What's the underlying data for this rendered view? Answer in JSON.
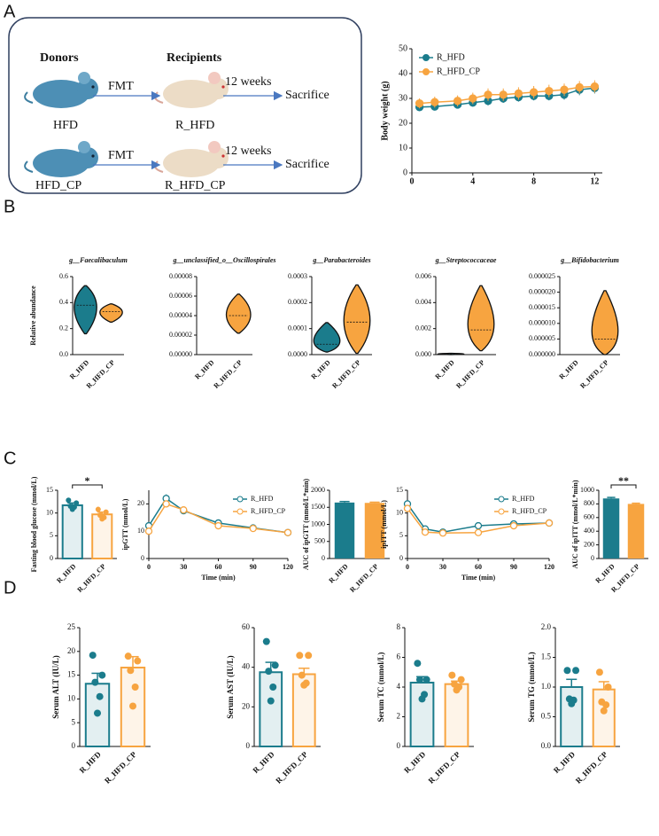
{
  "panels": [
    "A",
    "B",
    "C",
    "D"
  ],
  "diagram": {
    "donors_label": "Donors",
    "recipients_label": "Recipients",
    "rows": [
      {
        "donor": "HFD",
        "transfer": "FMT",
        "recipient": "R_HFD",
        "duration": "12 weeks",
        "outcome": "Sacrifice"
      },
      {
        "donor": "HFD_CP",
        "transfer": "FMT",
        "recipient": "R_HFD_CP",
        "duration": "12 weeks",
        "outcome": "Sacrifice"
      }
    ]
  },
  "chart_data": [
    {
      "type": "line",
      "ylabel": "Body weight (g)",
      "legend": "upper left",
      "x": [
        0.5,
        1.5,
        3,
        4,
        5,
        6,
        7,
        8,
        9,
        10,
        11,
        12
      ],
      "series": [
        {
          "name": "R_HFD",
          "color": "#1b7c8c",
          "values": [
            26.5,
            26.7,
            27.5,
            28.3,
            29,
            30,
            30.5,
            31,
            31,
            31.5,
            33.5,
            34.2
          ],
          "errors": [
            1.5,
            1.5,
            1.6,
            1.6,
            1.8,
            1.8,
            1.8,
            1.8,
            1.8,
            2,
            2.2,
            2.2
          ]
        },
        {
          "name": "R_HFD_CP",
          "color": "#f7a440",
          "values": [
            28,
            28.5,
            29,
            30,
            31.5,
            31.5,
            32,
            32.5,
            33,
            33.5,
            34.5,
            34.8
          ],
          "errors": [
            2,
            2.2,
            2.2,
            2.3,
            2.5,
            2.5,
            2.5,
            2.5,
            2.5,
            2.5,
            2.5,
            2.5
          ]
        }
      ],
      "xlim": [
        0,
        12.5
      ],
      "xticks": [
        0,
        4,
        8,
        12
      ],
      "ylim": [
        0,
        50
      ],
      "yticks": [
        0,
        10,
        20,
        30,
        40,
        50
      ]
    },
    {
      "type": "violin",
      "title": "g__Faecalibaculum",
      "ylabel": "Relative abundance",
      "categories": [
        "R_HFD",
        "R_HFD_CP"
      ],
      "colors": [
        "#1b7c8c",
        "#f7a440"
      ],
      "min": [
        0.16,
        0.25
      ],
      "median": [
        0.38,
        0.33
      ],
      "max": [
        0.53,
        0.39
      ],
      "ylim": [
        0,
        0.6
      ],
      "yticks": [
        {
          "value": 0,
          "label": "0.0"
        },
        0.2,
        0.4,
        0.6
      ]
    },
    {
      "type": "violin",
      "title": "g__unclassified_o__Oscillospirales",
      "categories": [
        "R_HFD",
        "R_HFD_CP"
      ],
      "colors": [
        "#1b7c8c",
        "#f7a440"
      ],
      "min": [
        null,
        2.2e-05
      ],
      "median": [
        null,
        4e-05
      ],
      "max": [
        null,
        6.2e-05
      ],
      "ylim": [
        0,
        8e-05
      ],
      "yticks": [
        {
          "value": 0,
          "label": "0.00000"
        },
        2e-05,
        4e-05,
        6e-05,
        8e-05
      ]
    },
    {
      "type": "violin",
      "title": "g__Parabacteroides",
      "categories": [
        "R_HFD",
        "R_HFD_CP"
      ],
      "colors": [
        "#1b7c8c",
        "#f7a440"
      ],
      "min": [
        1e-05,
        5e-06
      ],
      "median": [
        4e-05,
        0.000125
      ],
      "max": [
        0.000123,
        0.000268
      ],
      "ylim": [
        0,
        0.0003
      ],
      "yticks": [
        {
          "value": 0,
          "label": "0.0000"
        },
        0.0001,
        0.0002,
        0.0003
      ]
    },
    {
      "type": "violin",
      "title": "g__Streptococcaceae",
      "categories": [
        "R_HFD",
        "R_HFD_CP"
      ],
      "colors": [
        "#1b7c8c",
        "#f7a440"
      ],
      "min": [
        0,
        0.0003
      ],
      "median": [
        5e-05,
        0.0019
      ],
      "max": [
        0.0001,
        0.0053
      ],
      "ylim": [
        0,
        0.006
      ],
      "yticks": [
        {
          "value": 0,
          "label": "0.000"
        },
        0.002,
        0.004,
        0.006
      ]
    },
    {
      "type": "violin",
      "title": "g__Bifidobacterium",
      "categories": [
        "R_HFD",
        "R_HFD_CP"
      ],
      "colors": [
        "#1b7c8c",
        "#f7a440"
      ],
      "min": [
        null,
        0
      ],
      "median": [
        null,
        5e-06
      ],
      "max": [
        null,
        2.05e-05
      ],
      "ylim": [
        0,
        2.5e-05
      ],
      "yticks": [
        {
          "value": 0,
          "label": "0.000000"
        },
        5e-06,
        {
          "value": 1e-05,
          "label": "0.000010"
        },
        1.5e-05,
        {
          "value": 2e-05,
          "label": "0.000020"
        },
        2.5e-05
      ]
    },
    {
      "type": "bar",
      "ylabel": "Fasting blood glucose (mmol/L)",
      "categories": [
        "R_HFD",
        "R_HFD_CP"
      ],
      "colors": [
        "#1b7c8c",
        "#f7a440"
      ],
      "filled": false,
      "values": [
        11.7,
        9.7
      ],
      "errors": [
        0.5,
        0.5
      ],
      "points": [
        [
          12.8,
          12.2,
          11.5,
          11.3,
          10.8
        ],
        [
          10.8,
          10.2,
          9.5,
          9.0,
          8.7
        ]
      ],
      "annotation": "*",
      "ylim": [
        0,
        15
      ],
      "yticks": [
        0,
        5,
        10,
        15
      ]
    },
    {
      "type": "line",
      "ylabel": "ipGTT (mmol/L)",
      "xlabel": "Time (min)",
      "legend": "upper right",
      "x": [
        0,
        15,
        30,
        60,
        90,
        120
      ],
      "series": [
        {
          "name": "R_HFD",
          "color": "#1b7c8c",
          "values": [
            12,
            22,
            17.5,
            13,
            11.2,
            9.5
          ],
          "errors": [
            0.5,
            1.5,
            0.8,
            0.8,
            0.5,
            0.4
          ]
        },
        {
          "name": "R_HFD_CP",
          "color": "#f7a440",
          "values": [
            10,
            20,
            17.8,
            12,
            11,
            9.5
          ],
          "errors": [
            0.5,
            1.2,
            0.8,
            0.6,
            0.5,
            0.4
          ]
        }
      ],
      "xlim": [
        0,
        120
      ],
      "xticks": [
        0,
        30,
        60,
        90,
        120
      ],
      "ylim": [
        0,
        25
      ],
      "yticks": [
        0,
        10,
        20
      ]
    },
    {
      "type": "bar",
      "ylabel": "AUC of ipGTT (mmol/L*min)",
      "categories": [
        "R_HFD",
        "R_HFD_CP"
      ],
      "colors": [
        "#1b7c8c",
        "#f7a440"
      ],
      "filled": true,
      "values": [
        1640,
        1630
      ],
      "errors": [
        30,
        20
      ],
      "ylim": [
        0,
        2000
      ],
      "yticks": [
        0,
        500,
        1000,
        1500,
        2000
      ]
    },
    {
      "type": "line",
      "ylabel": "ipITT (mmol/L)",
      "xlabel": "Time (min)",
      "legend": "upper right",
      "x": [
        0,
        15,
        30,
        60,
        90,
        120
      ],
      "series": [
        {
          "name": "R_HFD",
          "color": "#1b7c8c",
          "values": [
            12,
            6.5,
            5.8,
            7.2,
            7.6,
            7.8
          ],
          "errors": [
            0.5,
            0.4,
            0.3,
            0.4,
            0.4,
            0.4
          ]
        },
        {
          "name": "R_HFD_CP",
          "color": "#f7a440",
          "values": [
            11,
            5.8,
            5.6,
            5.7,
            7.2,
            7.8
          ],
          "errors": [
            0.5,
            0.3,
            0.3,
            0.3,
            0.4,
            0.4
          ]
        }
      ],
      "xlim": [
        0,
        120
      ],
      "xticks": [
        0,
        30,
        60,
        90,
        120
      ],
      "ylim": [
        0,
        15
      ],
      "yticks": [
        0,
        5,
        10,
        15
      ]
    },
    {
      "type": "bar",
      "ylabel": "AUC of ipITT (mmol/L*min)",
      "categories": [
        "R_HFD",
        "R_HFD_CP"
      ],
      "colors": [
        "#1b7c8c",
        "#f7a440"
      ],
      "filled": true,
      "values": [
        880,
        800
      ],
      "errors": [
        15,
        10
      ],
      "annotation": "**",
      "ylim": [
        0,
        1000
      ],
      "yticks": [
        0,
        200,
        400,
        600,
        800,
        1000
      ]
    },
    {
      "type": "bar",
      "ylabel": "Serum ALT (IU/L)",
      "categories": [
        "R_HFD",
        "R_HFD_CP"
      ],
      "colors": [
        "#1b7c8c",
        "#f7a440"
      ],
      "filled": false,
      "values": [
        13.2,
        16.6
      ],
      "errors": [
        2.2,
        2.3
      ],
      "points": [
        [
          19.2,
          15,
          13.5,
          10.5,
          7
        ],
        [
          19,
          18,
          16,
          12.5,
          8.5
        ]
      ],
      "ylim": [
        0,
        25
      ],
      "yticks": [
        0,
        5,
        10,
        15,
        20,
        25
      ]
    },
    {
      "type": "bar",
      "ylabel": "Serum AST (IU/L)",
      "categories": [
        "R_HFD",
        "R_HFD_CP"
      ],
      "colors": [
        "#1b7c8c",
        "#f7a440"
      ],
      "filled": false,
      "values": [
        37.5,
        36.5
      ],
      "errors": [
        5,
        3
      ],
      "points": [
        [
          53,
          41,
          38,
          30,
          23
        ],
        [
          46,
          46,
          36,
          32,
          31
        ]
      ],
      "ylim": [
        0,
        60
      ],
      "yticks": [
        0,
        20,
        40,
        60
      ]
    },
    {
      "type": "bar",
      "ylabel": "Serum TC (mmol/L)",
      "categories": [
        "R_HFD",
        "R_HFD_CP"
      ],
      "colors": [
        "#1b7c8c",
        "#f7a440"
      ],
      "filled": false,
      "values": [
        4.3,
        4.2
      ],
      "errors": [
        0.4,
        0.2
      ],
      "points": [
        [
          5.6,
          4.5,
          4.5,
          3.5,
          3.2
        ],
        [
          4.8,
          4.5,
          4.2,
          4.0,
          3.8
        ]
      ],
      "ylim": [
        0,
        8
      ],
      "yticks": [
        0,
        2,
        4,
        6,
        8
      ]
    },
    {
      "type": "bar",
      "ylabel": "Serum TG (mmol/L)",
      "categories": [
        "R_HFD",
        "R_HFD_CP"
      ],
      "colors": [
        "#1b7c8c",
        "#f7a440"
      ],
      "filled": false,
      "values": [
        1.0,
        0.96
      ],
      "errors": [
        0.13,
        0.13
      ],
      "points": [
        [
          1.28,
          1.28,
          0.8,
          0.78,
          0.72
        ],
        [
          1.25,
          1.0,
          0.75,
          0.7,
          0.6
        ]
      ],
      "ylim": [
        0,
        2
      ],
      "yticks": [
        {
          "value": 0,
          "label": "0.0"
        },
        0.5,
        {
          "value": 1,
          "label": "1.0"
        },
        1.5,
        {
          "value": 2,
          "label": "2.0"
        }
      ]
    }
  ]
}
